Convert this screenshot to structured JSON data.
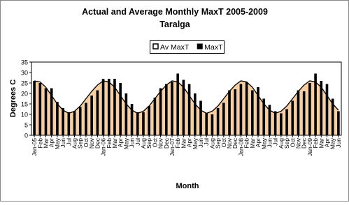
{
  "chart_data": {
    "type": "bar-area",
    "title": "Actual and Average Monthly MaxT 2005-2009",
    "subtitle": "Taralga",
    "y_label": "Degrees C",
    "x_label": "Month",
    "categories": [
      "Jan-05",
      "Feb",
      "Mar",
      "Apr",
      "May",
      "Jun",
      "Jul",
      "Aug",
      "Sep",
      "Oct",
      "Nov",
      "Dec",
      "Jan-06",
      "Feb",
      "Mar",
      "Apr",
      "May",
      "Jun",
      "Jul",
      "Aug",
      "Sep",
      "Oct",
      "Nov",
      "Dec",
      "Jan-07",
      "Feb",
      "Mar",
      "Apr",
      "May",
      "Jun",
      "Jul",
      "Aug",
      "Sep",
      "Oct",
      "Nov",
      "Dec",
      "Jan-08",
      "Feb",
      "Mar",
      "Apr",
      "May",
      "Jun",
      "Jul",
      "Aug",
      "Sep",
      "Oct",
      "Nov",
      "Dec",
      "Jan-09",
      "Feb",
      "Mar",
      "Apr",
      "May",
      "Jun"
    ],
    "series": [
      {
        "name": "Av MaxT",
        "color": "#f7cfa4",
        "kind": "area",
        "values": [
          26,
          25.5,
          23,
          19,
          15,
          12,
          10.5,
          11.5,
          14,
          17.5,
          21,
          24,
          26,
          25.5,
          23,
          19,
          15,
          12,
          10.5,
          11.5,
          14,
          17.5,
          21,
          24,
          26,
          25.5,
          23,
          19,
          15,
          12,
          10.5,
          11.5,
          14,
          17.5,
          21,
          24,
          26,
          25.5,
          23,
          19,
          15,
          12,
          10.5,
          11.5,
          14,
          17.5,
          21,
          24,
          26,
          25.5,
          23,
          19,
          15,
          12
        ]
      },
      {
        "name": "MaxT",
        "color": "#000000",
        "kind": "bar",
        "values": [
          26,
          25,
          22.5,
          22.5,
          16,
          13,
          11,
          11.5,
          13.5,
          15.5,
          19,
          21.5,
          27,
          27,
          27,
          25,
          20,
          15,
          11,
          11,
          14,
          18,
          22.5,
          24.5,
          25.5,
          29.5,
          26.5,
          24.5,
          20,
          16.5,
          10.5,
          10,
          13,
          15.5,
          21.5,
          22,
          24.5,
          25.5,
          21.5,
          23,
          17.5,
          14.5,
          11.5,
          10.5,
          12.5,
          16.5,
          21.5,
          21,
          25,
          29.5,
          26,
          24.5,
          17.5,
          11.5
        ]
      }
    ],
    "ylim": [
      0,
      35
    ],
    "yticks": [
      0,
      5,
      10,
      15,
      20,
      25,
      30,
      35
    ],
    "grid": false,
    "legend": "top"
  }
}
